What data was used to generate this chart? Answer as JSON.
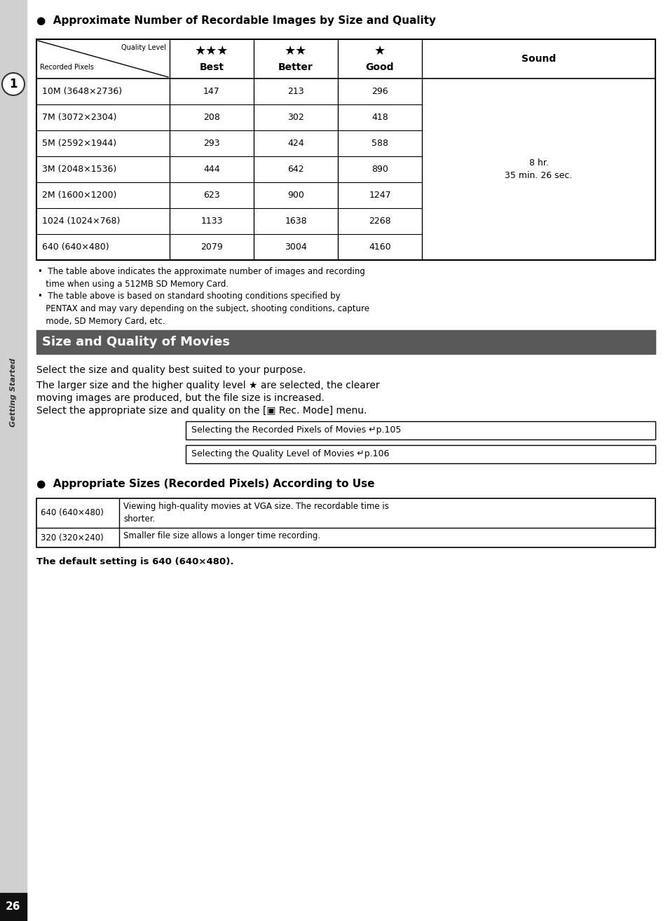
{
  "page_bg": "#ffffff",
  "sidebar_bg": "#d0d0d0",
  "sidebar_number": "1",
  "sidebar_text": "Getting Started",
  "page_number": "26",
  "section1_bullet": "●",
  "section1_title": "Approximate Number of Recordable Images by Size and Quality",
  "table1_header_col0_top": "Quality Level",
  "table1_header_col0_bot": "Recorded Pixels",
  "table1_col1_stars": "★★★",
  "table1_col1_label": "Best",
  "table1_col2_stars": "★★",
  "table1_col2_label": "Better",
  "table1_col3_stars": "★",
  "table1_col3_label": "Good",
  "table1_col4_label": "Sound",
  "table1_sound_value": "8 hr.\n35 min. 26 sec.",
  "table1_rows": [
    [
      "10M (3648×2736)",
      "147",
      "213",
      "296"
    ],
    [
      "7M (3072×2304)",
      "208",
      "302",
      "418"
    ],
    [
      "5M (2592×1944)",
      "293",
      "424",
      "588"
    ],
    [
      "3M (2048×1536)",
      "444",
      "642",
      "890"
    ],
    [
      "2M (1600×1200)",
      "623",
      "900",
      "1247"
    ],
    [
      "1024 (1024×768)",
      "1133",
      "1638",
      "2268"
    ],
    [
      "640 (640×480)",
      "2079",
      "3004",
      "4160"
    ]
  ],
  "bullet1_text": "The table above indicates the approximate number of images and recording\n    time when using a 512MB SD Memory Card.",
  "bullet2_text": "The table above is based on standard shooting conditions specified by\n    PENTAX and may vary depending on the subject, shooting conditions, capture\n    mode, SD Memory Card, etc.",
  "section2_title": "Size and Quality of Movies",
  "section2_bg": "#595959",
  "section2_fg": "#ffffff",
  "para1": "Select the size and quality best suited to your purpose.",
  "para2_line1": "The larger size and the higher quality level ★ are selected, the clearer",
  "para2_line2": "moving images are produced, but the file size is increased.",
  "para3": "Select the appropriate size and quality on the [▣ Rec. Mode] menu.",
  "ref_box1": "Selecting the Recorded Pixels of Movies ↵p.105",
  "ref_box2": "Selecting the Quality Level of Movies ↵p.106",
  "section3_bullet": "●",
  "section3_title": "Appropriate Sizes (Recorded Pixels) According to Use",
  "table2_row1_col0": "640 (640×480)",
  "table2_row1_col1": "Viewing high-quality movies at VGA size. The recordable time is shorter.",
  "table2_row2_col0": "320 (320×240)",
  "table2_row2_col1": "Smaller file size allows a longer time recording.",
  "default_text": "The default setting is 640 (640×480)."
}
